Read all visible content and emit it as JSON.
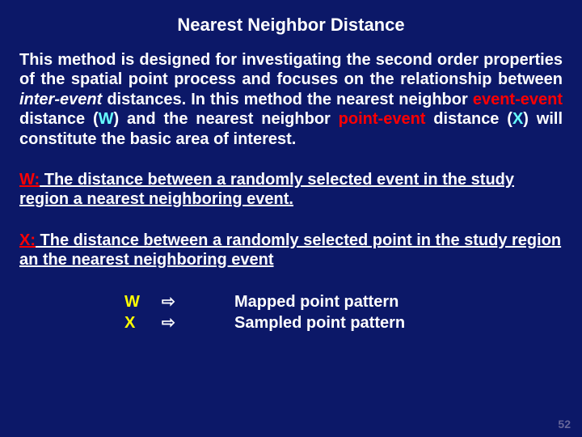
{
  "title": "Nearest Neighbor Distance",
  "para_lead": "This method is designed for investigating the second order properties of the spatial point process and focuses on the relationship between ",
  "para_italic1": "inter-event",
  "para_mid1": " distances.  In this method the nearest neighbor ",
  "para_red1": "event-event",
  "para_mid2": " distance (",
  "para_cyan1": "W",
  "para_mid3": ") and the nearest neighbor ",
  "para_red2": "point-event",
  "para_mid4": " distance (",
  "para_cyan2": "X",
  "para_mid5": ") will constitute the basic area of interest.",
  "defW_label": "W:",
  "defW_text": " The distance between a randomly selected event in the study region a nearest neighboring event.",
  "defX_label": "X:",
  "defX_text": " The distance between a randomly selected point in the study region an the nearest neighboring event",
  "tbl": {
    "row1": {
      "sym": "W",
      "arrow": "⇨",
      "text": "Mapped point pattern"
    },
    "row2": {
      "sym": "X",
      "arrow": "⇨",
      "text": "Sampled point pattern"
    }
  },
  "page": "52"
}
